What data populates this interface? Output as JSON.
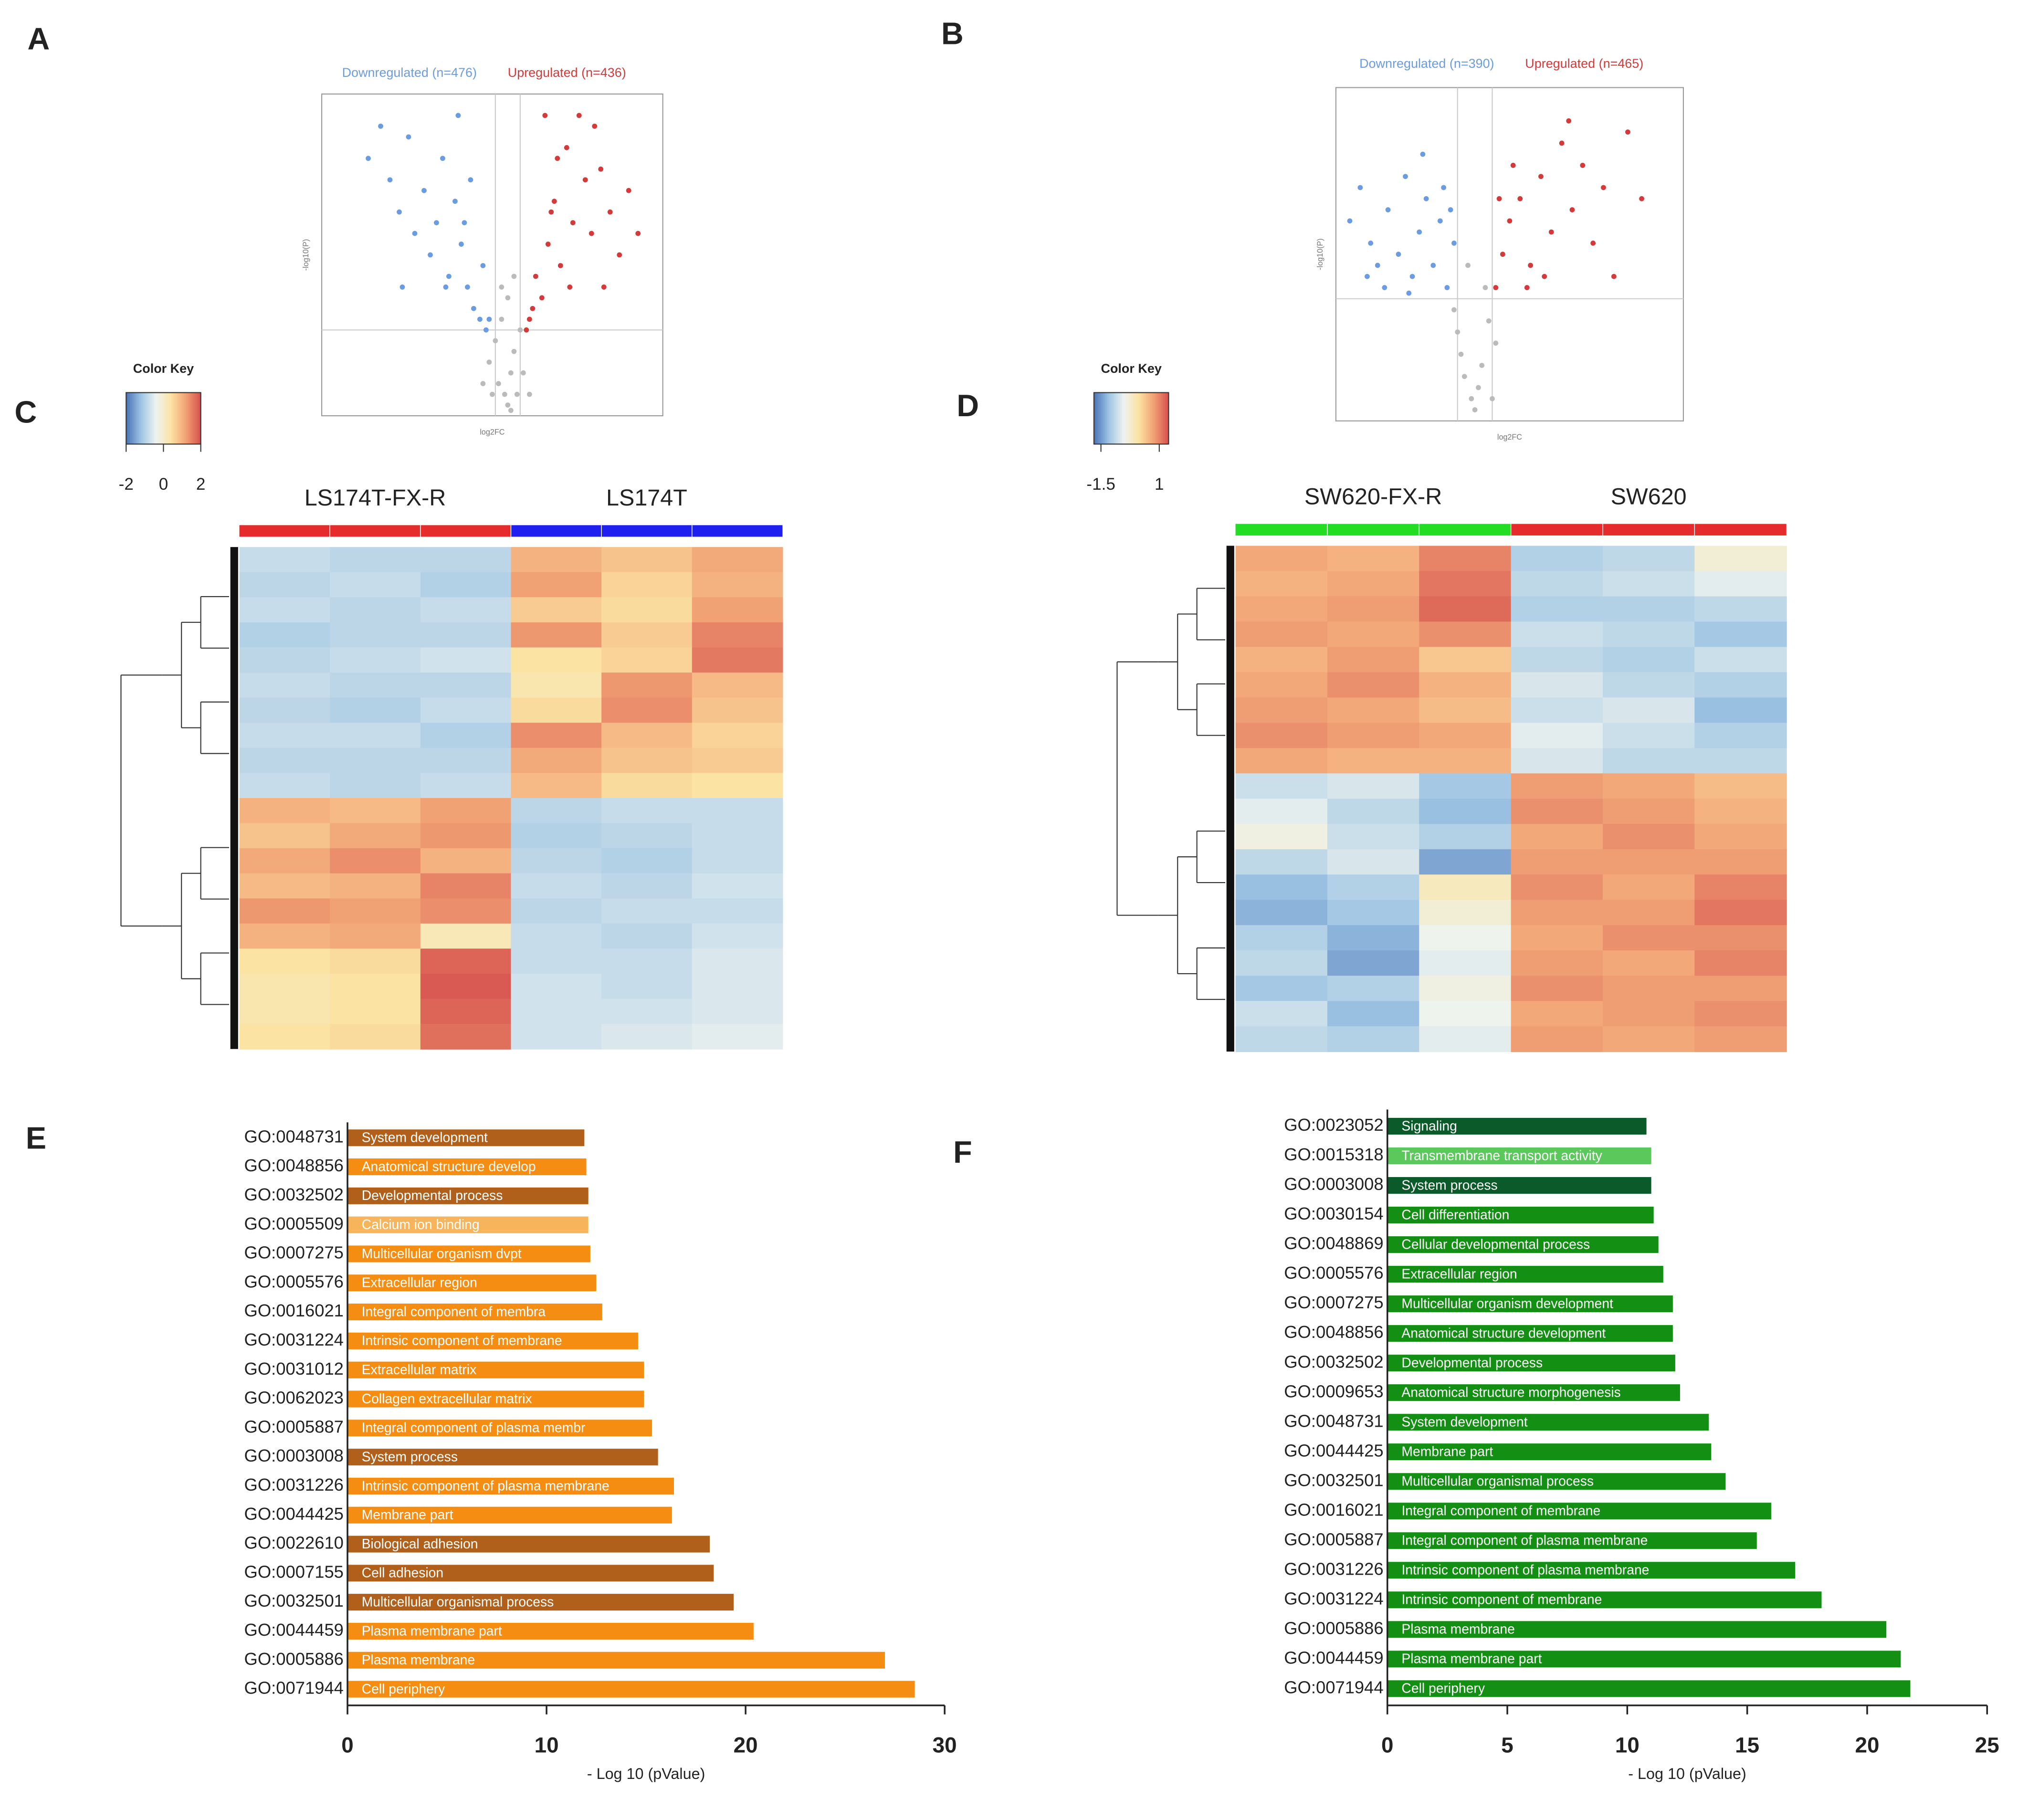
{
  "panel_labels": [
    "A",
    "B",
    "C",
    "D",
    "E",
    "F"
  ],
  "chart_data": [
    {
      "type": "scatter",
      "xlabel": "log2FC",
      "ylabel": "-log10(P)",
      "xlim": [
        -6,
        5
      ],
      "ylim": [
        0,
        30
      ],
      "thresholds": {
        "x": [
          -0.4,
          0.4
        ],
        "y": 8
      },
      "series": [
        {
          "name": "Downregulated (n=476)",
          "color": "#6b9be0",
          "x": [
            -4.5,
            -4.1,
            -3.8,
            -3.5,
            -3.2,
            -3.0,
            -2.7,
            -2.5,
            -2.3,
            -2.1,
            -1.9,
            -1.7,
            -1.5,
            -1.3,
            -1.1,
            -0.9,
            -0.7,
            -0.6,
            -1.6,
            -2.0,
            -1.2,
            -0.8,
            -3.4,
            -1.4
          ],
          "y": [
            24,
            27,
            22,
            19,
            26,
            17,
            21,
            15,
            18,
            24,
            13,
            20,
            16,
            12,
            10,
            9,
            8,
            9,
            28,
            12,
            22,
            14,
            12,
            18
          ]
        },
        {
          "name": "Upregulated (n=436)",
          "color": "#d43a3a",
          "x": [
            0.6,
            0.8,
            0.9,
            1.1,
            1.3,
            1.5,
            1.7,
            1.9,
            2.1,
            2.3,
            2.5,
            2.7,
            3.0,
            3.3,
            3.6,
            3.9,
            4.2,
            1.2,
            1.6,
            2.0,
            0.7,
            2.8,
            1.4,
            3.1
          ],
          "y": [
            8,
            10,
            13,
            11,
            16,
            20,
            14,
            25,
            18,
            28,
            22,
            17,
            23,
            19,
            15,
            21,
            17,
            28,
            24,
            12,
            9,
            27,
            19,
            12
          ]
        },
        {
          "color": "#bbbbbb",
          "x": [
            -0.6,
            -0.4,
            -0.3,
            -0.2,
            -0.1,
            0,
            0.1,
            0.2,
            0.3,
            0.4,
            0.5,
            -0.5,
            0,
            0.2,
            -0.2,
            -0.8,
            0.7,
            0.1
          ],
          "y": [
            5,
            7,
            3,
            9,
            2,
            1,
            4,
            6,
            2,
            8,
            4,
            2,
            11,
            13,
            12,
            3,
            2,
            0.5
          ]
        }
      ]
    },
    {
      "type": "scatter",
      "xlabel": "log2FC",
      "ylabel": "-log10(P)",
      "xlim": [
        -4,
        6
      ],
      "ylim": [
        0,
        30
      ],
      "thresholds": {
        "x": [
          -0.5,
          0.5
        ],
        "y": 11
      },
      "series": [
        {
          "name": "Downregulated (n=390)",
          "color": "#6b9be0",
          "x": [
            -3.6,
            -3.3,
            -3.0,
            -2.8,
            -2.5,
            -2.2,
            -2.0,
            -1.8,
            -1.6,
            -1.4,
            -1.2,
            -1.0,
            -0.8,
            -0.6,
            -2.6,
            -1.5,
            -0.9,
            -3.1,
            -0.7,
            -1.9
          ],
          "y": [
            18,
            21,
            16,
            14,
            19,
            15,
            22,
            13,
            17,
            20,
            14,
            18,
            12,
            16,
            12,
            24,
            21,
            13,
            19,
            11.5
          ]
        },
        {
          "name": "Upregulated (n=465)",
          "color": "#d43a3a",
          "x": [
            0.6,
            0.8,
            1.0,
            1.3,
            1.6,
            1.9,
            2.2,
            2.5,
            2.8,
            3.1,
            3.4,
            3.7,
            4.0,
            4.4,
            4.8,
            1.1,
            1.5,
            2.0,
            2.7,
            0.7
          ],
          "y": [
            12,
            15,
            18,
            20,
            14,
            22,
            17,
            25,
            19,
            23,
            16,
            21,
            13,
            26,
            20,
            23,
            12,
            13,
            27,
            20
          ]
        },
        {
          "color": "#bbbbbb",
          "x": [
            -0.5,
            -0.3,
            -0.1,
            0,
            0.2,
            0.4,
            -0.2,
            0.3,
            0.1,
            -0.4,
            0.5,
            -0.6,
            0.6
          ],
          "y": [
            8,
            4,
            2,
            1,
            5,
            9,
            14,
            12,
            3,
            6,
            2,
            10,
            7
          ]
        }
      ]
    },
    {
      "type": "heatmap",
      "key_title": "Color Key",
      "key_lim": [
        -2,
        2
      ],
      "key_ticks": [
        -2,
        0,
        2
      ],
      "key_colors": [
        "#4a72b8",
        "#9ec5e3",
        "#eef3f0",
        "#fbe3a4",
        "#f1a274",
        "#d6504e"
      ],
      "groups": [
        {
          "name": "LS174T-FX-R",
          "color": "#e52b2b"
        },
        {
          "name": "LS174T",
          "color": "#1f1ff0"
        }
      ],
      "values": [
        [
          -0.8,
          -0.9,
          -0.9,
          1.0,
          0.8,
          1.1
        ],
        [
          -0.9,
          -0.8,
          -1.0,
          1.2,
          0.6,
          1.0
        ],
        [
          -0.8,
          -0.9,
          -0.8,
          0.7,
          0.5,
          1.2
        ],
        [
          -1.0,
          -0.9,
          -0.9,
          1.3,
          0.7,
          1.5
        ],
        [
          -0.9,
          -0.8,
          -0.7,
          0.4,
          0.6,
          1.6
        ],
        [
          -0.8,
          -0.9,
          -0.9,
          0.3,
          1.3,
          0.9
        ],
        [
          -0.9,
          -1.0,
          -0.8,
          0.5,
          1.4,
          0.8
        ],
        [
          -0.8,
          -0.8,
          -1.0,
          1.4,
          0.9,
          0.6
        ],
        [
          -0.9,
          -0.9,
          -0.9,
          1.1,
          0.8,
          0.7
        ],
        [
          -0.8,
          -0.9,
          -0.8,
          0.9,
          0.5,
          0.4
        ],
        [
          1.0,
          0.9,
          1.2,
          -0.9,
          -0.8,
          -0.8
        ],
        [
          0.8,
          1.1,
          1.3,
          -1.0,
          -0.9,
          -0.8
        ],
        [
          1.1,
          1.4,
          1.0,
          -0.9,
          -1.0,
          -0.8
        ],
        [
          0.9,
          1.0,
          1.5,
          -0.8,
          -0.9,
          -0.7
        ],
        [
          1.3,
          1.2,
          1.4,
          -0.9,
          -0.8,
          -0.8
        ],
        [
          1.0,
          1.1,
          0.2,
          -0.8,
          -0.9,
          -0.7
        ],
        [
          0.4,
          0.5,
          1.8,
          -0.8,
          -0.8,
          -0.6
        ],
        [
          0.3,
          0.4,
          1.9,
          -0.7,
          -0.8,
          -0.6
        ],
        [
          0.3,
          0.4,
          1.8,
          -0.7,
          -0.7,
          -0.6
        ],
        [
          0.4,
          0.5,
          1.7,
          -0.7,
          -0.6,
          -0.5
        ]
      ]
    },
    {
      "type": "heatmap",
      "key_title": "Color Key",
      "key_lim": [
        -1.8,
        1.4
      ],
      "key_ticks": [
        -1.5,
        1
      ],
      "key_colors": [
        "#4a72b8",
        "#9ec5e3",
        "#eef3f0",
        "#fbe3a4",
        "#f1a274",
        "#d6504e"
      ],
      "groups": [
        {
          "name": "SW620-FX-R",
          "color": "#22dd22"
        },
        {
          "name": "SW620",
          "color": "#e52b2b"
        }
      ],
      "values": [
        [
          0.7,
          0.6,
          1.0,
          -1.0,
          -0.9,
          -0.3
        ],
        [
          0.6,
          0.7,
          1.1,
          -0.9,
          -0.8,
          -0.6
        ],
        [
          0.7,
          0.8,
          1.2,
          -1.0,
          -1.0,
          -0.9
        ],
        [
          0.8,
          0.7,
          0.9,
          -0.8,
          -0.9,
          -1.1
        ],
        [
          0.6,
          0.8,
          0.4,
          -0.9,
          -1.0,
          -0.8
        ],
        [
          0.7,
          0.9,
          0.6,
          -0.7,
          -0.9,
          -1.0
        ],
        [
          0.8,
          0.7,
          0.5,
          -0.8,
          -0.7,
          -1.2
        ],
        [
          0.9,
          0.8,
          0.7,
          -0.6,
          -0.8,
          -1.0
        ],
        [
          0.7,
          0.6,
          0.6,
          -0.7,
          -0.9,
          -0.9
        ],
        [
          -0.8,
          -0.7,
          -1.1,
          0.8,
          0.7,
          0.5
        ],
        [
          -0.6,
          -0.9,
          -1.2,
          0.9,
          0.8,
          0.6
        ],
        [
          -0.4,
          -0.8,
          -1.0,
          0.7,
          0.9,
          0.7
        ],
        [
          -0.9,
          -0.7,
          -1.4,
          0.8,
          0.8,
          0.8
        ],
        [
          -1.2,
          -1.0,
          -0.1,
          0.9,
          0.7,
          1.0
        ],
        [
          -1.3,
          -1.1,
          -0.3,
          0.8,
          0.8,
          1.1
        ],
        [
          -1.0,
          -1.3,
          -0.5,
          0.7,
          0.9,
          0.9
        ],
        [
          -0.9,
          -1.4,
          -0.6,
          0.8,
          0.7,
          1.0
        ],
        [
          -1.1,
          -1.0,
          -0.4,
          0.9,
          0.8,
          0.8
        ],
        [
          -0.8,
          -1.2,
          -0.5,
          0.7,
          0.8,
          0.9
        ],
        [
          -0.9,
          -1.0,
          -0.6,
          0.8,
          0.7,
          0.8
        ]
      ]
    },
    {
      "type": "barh",
      "xlabel": "- Log 10 (pValue)",
      "xlim": [
        0,
        30
      ],
      "xticks": [
        0,
        10,
        20,
        30
      ],
      "categories": [
        "GO:0048731",
        "GO:0048856",
        "GO:0032502",
        "GO:0005509",
        "GO:0007275",
        "GO:0005576",
        "GO:0016021",
        "GO:0031224",
        "GO:0031012",
        "GO:0062023",
        "GO:0005887",
        "GO:0003008",
        "GO:0031226",
        "GO:0044425",
        "GO:0022610",
        "GO:0007155",
        "GO:0032501",
        "GO:0044459",
        "GO:0005886",
        "GO:0071944"
      ],
      "labels": [
        "System development",
        "Anatomical structure develop",
        "Developmental process",
        "Calcium ion binding",
        "Multicellular organism dvpt",
        "Extracellular region",
        "Integral component of membra",
        "Intrinsic component of membrane",
        "Extracellular matrix",
        "Collagen extracellular matrix",
        "Integral component of plasma membr",
        "System process",
        "Intrinsic component of plasma membrane",
        "Membrane part",
        "Biological adhesion",
        "Cell adhesion",
        "Multicellular organismal process",
        "Plasma membrane part",
        "Plasma membrane",
        "Cell periphery"
      ],
      "values": [
        11.9,
        12.0,
        12.1,
        12.1,
        12.2,
        12.5,
        12.8,
        14.6,
        14.9,
        14.9,
        15.3,
        15.6,
        16.4,
        16.3,
        18.2,
        18.4,
        19.4,
        20.4,
        27.0,
        28.5
      ],
      "colors": [
        "#b0601a",
        "#f58d12",
        "#b0601a",
        "#f7b45a",
        "#f58d12",
        "#f58d12",
        "#f58d12",
        "#f58d12",
        "#f58d12",
        "#f58d12",
        "#f58d12",
        "#b0601a",
        "#f58d12",
        "#f58d12",
        "#b0601a",
        "#b0601a",
        "#b0601a",
        "#f58d12",
        "#f58d12",
        "#f58d12"
      ]
    },
    {
      "type": "barh",
      "xlabel": "- Log 10 (pValue)",
      "xlim": [
        0,
        25
      ],
      "xticks": [
        0,
        5,
        10,
        15,
        20,
        25
      ],
      "categories": [
        "GO:0023052",
        "GO:0015318",
        "GO:0003008",
        "GO:0030154",
        "GO:0048869",
        "GO:0005576",
        "GO:0007275",
        "GO:0048856",
        "GO:0032502",
        "GO:0009653",
        "GO:0048731",
        "GO:0044425",
        "GO:0032501",
        "GO:0016021",
        "GO:0005887",
        "GO:0031226",
        "GO:0031224",
        "GO:0005886",
        "GO:0044459",
        "GO:0071944"
      ],
      "labels": [
        "Signaling",
        "Transmembrane transport activity",
        "System process",
        "Cell differentiation",
        "Cellular developmental process",
        "Extracellular region",
        "Multicellular organism development",
        "Anatomical structure development",
        "Developmental process",
        "Anatomical structure morphogenesis",
        "System development",
        "Membrane part",
        "Multicellular organismal process",
        "Integral component of membrane",
        "Integral component of plasma membrane",
        "Intrinsic component of plasma membrane",
        "Intrinsic component of membrane",
        "Plasma membrane",
        "Plasma membrane part",
        "Cell periphery"
      ],
      "values": [
        10.8,
        11.0,
        11.0,
        11.1,
        11.3,
        11.5,
        11.9,
        11.9,
        12.0,
        12.2,
        13.4,
        13.5,
        14.1,
        16.0,
        15.4,
        17.0,
        18.1,
        20.8,
        21.4,
        21.8
      ],
      "colors": [
        "#0b5a2a",
        "#5bc85b",
        "#0b5a2a",
        "#139013",
        "#139013",
        "#139013",
        "#139013",
        "#139013",
        "#139013",
        "#139013",
        "#139013",
        "#139013",
        "#139013",
        "#139013",
        "#139013",
        "#139013",
        "#139013",
        "#139013",
        "#139013",
        "#139013"
      ]
    }
  ]
}
